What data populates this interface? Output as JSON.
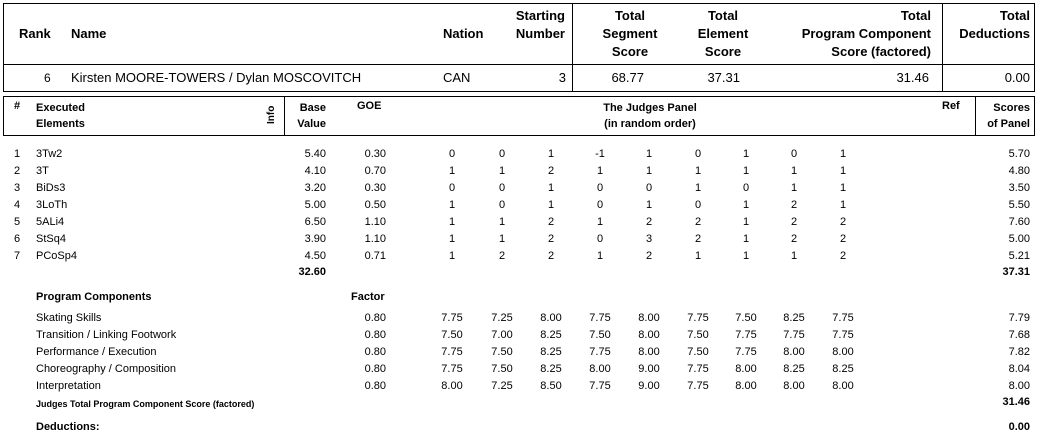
{
  "header": {
    "rank_label": "Rank",
    "name_label": "Name",
    "nation_label": "Nation",
    "starting_label": [
      "Starting",
      "Number"
    ],
    "tss_label": [
      "Total",
      "Segment",
      "Score"
    ],
    "tes_label": [
      "Total",
      "Element",
      "Score"
    ],
    "pcs_label": [
      "Total",
      "Program  Component",
      "Score (factored)"
    ],
    "ded_label": [
      "Total",
      "Deductions"
    ]
  },
  "skater": {
    "rank": "6",
    "name": "Kirsten MOORE-TOWERS / Dylan MOSCOVITCH",
    "nation": "CAN",
    "start_no": "3",
    "tss": "68.77",
    "tes": "37.31",
    "pcs": "31.46",
    "deductions": "0.00"
  },
  "elements_header": {
    "num": "#",
    "executed": [
      "Executed",
      "Elements"
    ],
    "info": "Info",
    "base": [
      "Base",
      "Value"
    ],
    "goe": "GOE",
    "panel": [
      "The Judges Panel",
      "(in random order)"
    ],
    "ref": "Ref",
    "scores": [
      "Scores",
      "of Panel"
    ]
  },
  "elements": [
    {
      "no": "1",
      "name": "3Tw2",
      "base": "5.40",
      "goe": "0.30",
      "judges": [
        "0",
        "0",
        "1",
        "-1",
        "1",
        "0",
        "1",
        "0",
        "1"
      ],
      "score": "5.70"
    },
    {
      "no": "2",
      "name": "3T",
      "base": "4.10",
      "goe": "0.70",
      "judges": [
        "1",
        "1",
        "2",
        "1",
        "1",
        "1",
        "1",
        "1",
        "1"
      ],
      "score": "4.80"
    },
    {
      "no": "3",
      "name": "BiDs3",
      "base": "3.20",
      "goe": "0.30",
      "judges": [
        "0",
        "0",
        "1",
        "0",
        "0",
        "1",
        "0",
        "1",
        "1"
      ],
      "score": "3.50"
    },
    {
      "no": "4",
      "name": "3LoTh",
      "base": "5.00",
      "goe": "0.50",
      "judges": [
        "1",
        "0",
        "1",
        "0",
        "1",
        "0",
        "1",
        "2",
        "1"
      ],
      "score": "5.50"
    },
    {
      "no": "5",
      "name": "5ALi4",
      "base": "6.50",
      "goe": "1.10",
      "judges": [
        "1",
        "1",
        "2",
        "1",
        "2",
        "2",
        "1",
        "2",
        "2"
      ],
      "score": "7.60"
    },
    {
      "no": "6",
      "name": "StSq4",
      "base": "3.90",
      "goe": "1.10",
      "judges": [
        "1",
        "1",
        "2",
        "0",
        "3",
        "2",
        "1",
        "2",
        "2"
      ],
      "score": "5.00"
    },
    {
      "no": "7",
      "name": "PCoSp4",
      "base": "4.50",
      "goe": "0.71",
      "judges": [
        "1",
        "2",
        "2",
        "1",
        "2",
        "1",
        "1",
        "1",
        "2"
      ],
      "score": "5.21"
    }
  ],
  "base_total": "32.60",
  "tes_total": "37.31",
  "components_header": {
    "label": "Program Components",
    "factor": "Factor"
  },
  "components": [
    {
      "name": "Skating Skills",
      "factor": "0.80",
      "judges": [
        "7.75",
        "7.25",
        "8.00",
        "7.75",
        "8.00",
        "7.75",
        "7.50",
        "8.25",
        "7.75"
      ],
      "score": "7.79"
    },
    {
      "name": "Transition / Linking Footwork",
      "factor": "0.80",
      "judges": [
        "7.50",
        "7.00",
        "8.25",
        "7.50",
        "8.00",
        "7.50",
        "7.75",
        "7.75",
        "7.75"
      ],
      "score": "7.68"
    },
    {
      "name": "Performance / Execution",
      "factor": "0.80",
      "judges": [
        "7.75",
        "7.50",
        "8.25",
        "7.75",
        "8.00",
        "7.50",
        "7.75",
        "8.00",
        "8.00"
      ],
      "score": "7.82"
    },
    {
      "name": "Choreography / Composition",
      "factor": "0.80",
      "judges": [
        "7.75",
        "7.50",
        "8.25",
        "8.00",
        "9.00",
        "7.75",
        "8.00",
        "8.25",
        "8.25"
      ],
      "score": "8.04"
    },
    {
      "name": "Interpretation",
      "factor": "0.80",
      "judges": [
        "8.00",
        "7.25",
        "8.50",
        "7.75",
        "9.00",
        "7.75",
        "8.00",
        "8.00",
        "8.00"
      ],
      "score": "8.00"
    }
  ],
  "pcs_total_label": "Judges Total Program Component Score (factored)",
  "pcs_total": "31.46",
  "deductions_label": "Deductions:",
  "deductions_total": "0.00"
}
